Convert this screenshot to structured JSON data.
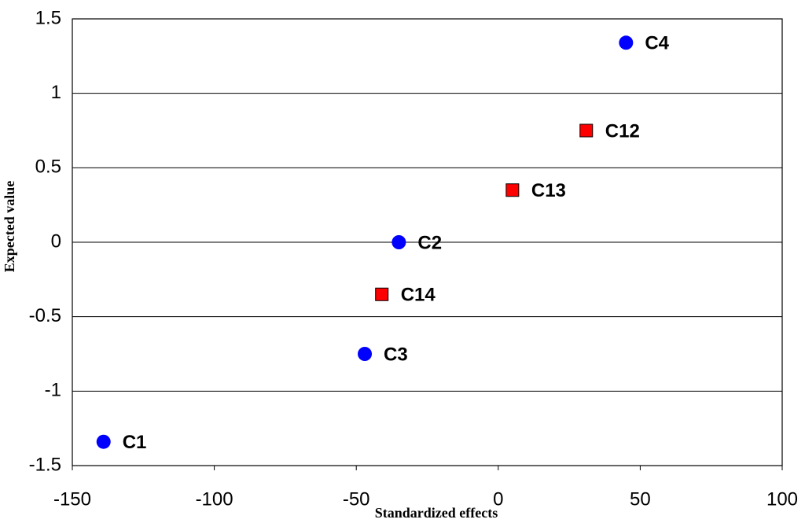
{
  "chart_data": {
    "type": "scatter",
    "x_label": "Standardized effects",
    "y_label": "Expected value",
    "xlim": [
      -150,
      100
    ],
    "xticks": [
      -150,
      -100,
      -50,
      0,
      50,
      100
    ],
    "ylim": [
      -1.5,
      1.5
    ],
    "yticks": [
      -1.5,
      -1,
      -0.5,
      0,
      0.5,
      1,
      1.5
    ],
    "grid": true,
    "series": [
      {
        "color": "#0000ff",
        "marker": "circle",
        "x": [
          -139,
          -35,
          -47,
          45
        ],
        "values": [
          -1.34,
          0,
          -0.75,
          1.34
        ],
        "labels": [
          "C1",
          "C2",
          "C3",
          "C4"
        ]
      },
      {
        "color": "#ff0000",
        "marker": "square",
        "x": [
          31,
          5,
          -41
        ],
        "values": [
          0.75,
          0.35,
          -0.35
        ],
        "labels": [
          "C12",
          "C13",
          "C14"
        ]
      }
    ]
  }
}
